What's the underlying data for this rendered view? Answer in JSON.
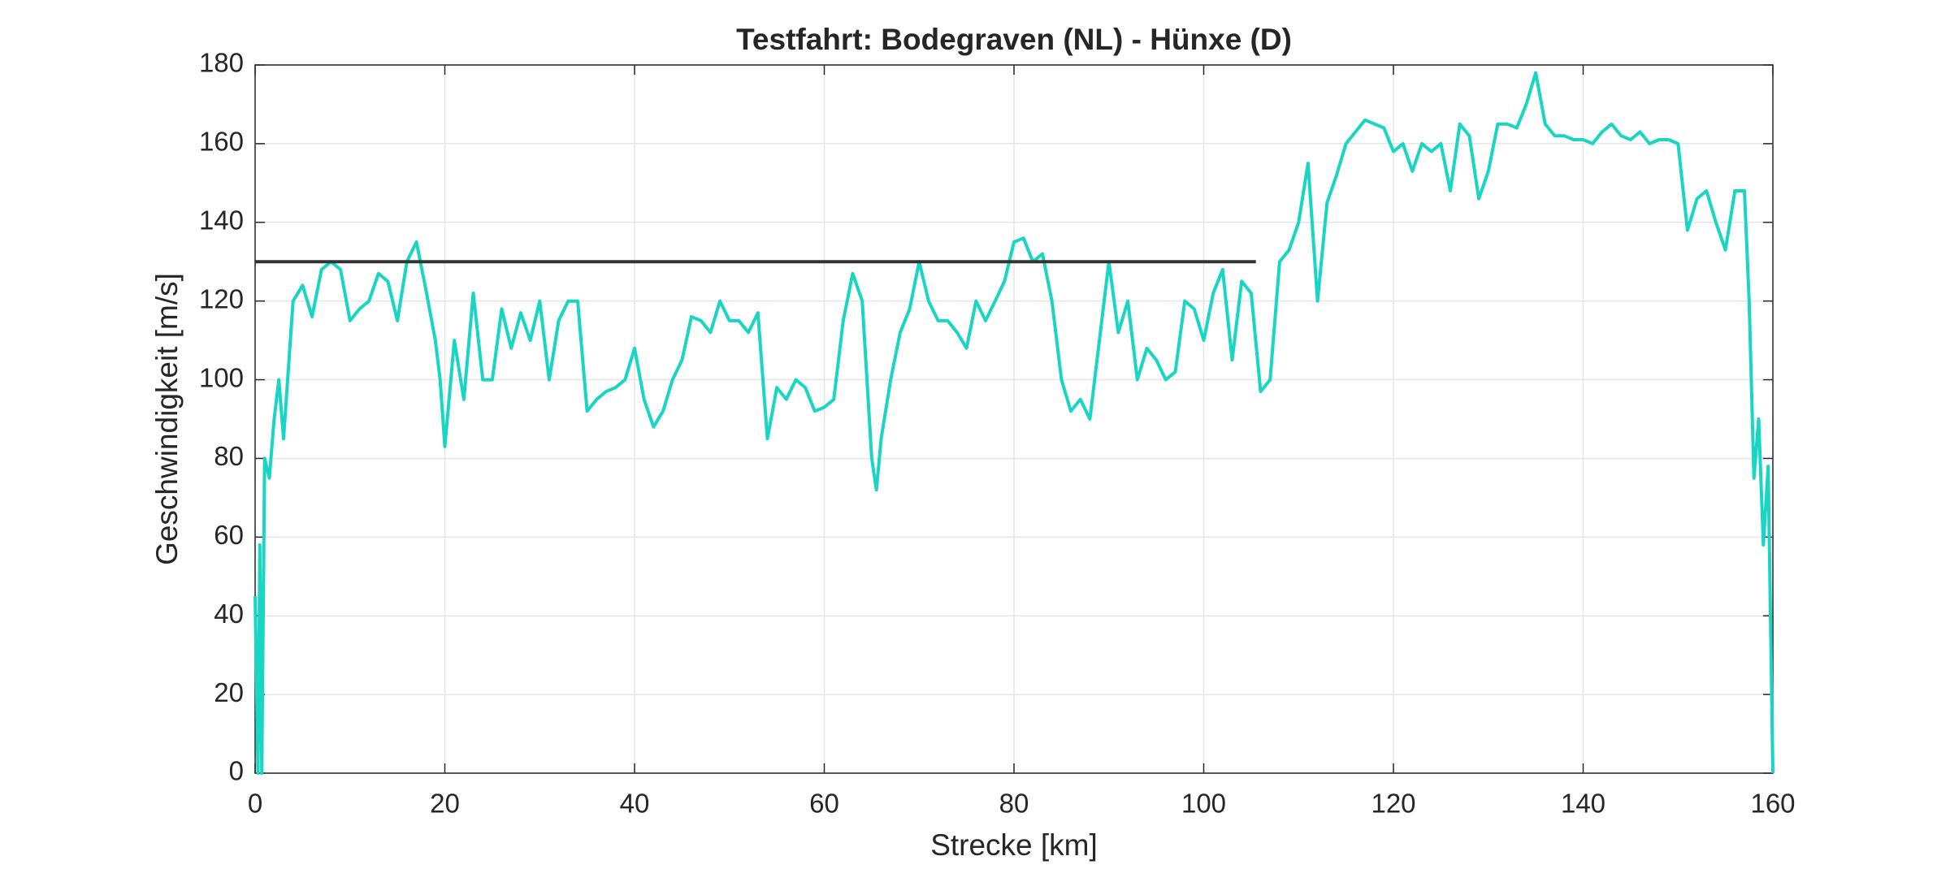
{
  "chart_data": {
    "type": "line",
    "title": "Testfahrt: Bodegraven (NL) - Hünxe (D)",
    "x_label": "Strecke [km]",
    "y_label": "Geschwindigkeit [m/s]",
    "xlim": [
      0,
      160
    ],
    "xticks": [
      0,
      20,
      40,
      60,
      80,
      100,
      120,
      140,
      160
    ],
    "ylim": [
      0,
      180
    ],
    "yticks": [
      0,
      20,
      40,
      60,
      80,
      100,
      120,
      140,
      160,
      180
    ],
    "grid": true,
    "series": [
      {
        "color": "#19d6c4",
        "x": [
          0,
          0.3,
          0.5,
          0.7,
          1,
          1.5,
          2,
          2.5,
          3,
          4,
          5,
          6,
          7,
          8,
          9,
          10,
          11,
          12,
          13,
          14,
          15,
          16,
          17,
          18,
          19,
          19.5,
          20,
          21,
          22,
          23,
          24,
          25,
          26,
          27,
          28,
          29,
          30,
          31,
          32,
          33,
          34,
          35,
          36,
          37,
          38,
          39,
          40,
          41,
          42,
          43,
          44,
          45,
          46,
          47,
          48,
          49,
          50,
          51,
          52,
          53,
          54,
          55,
          56,
          57,
          58,
          59,
          60,
          61,
          62,
          63,
          64,
          65,
          65.5,
          66,
          67,
          68,
          69,
          70,
          71,
          72,
          73,
          74,
          75,
          76,
          77,
          78,
          79,
          80,
          81,
          82,
          83,
          84,
          85,
          86,
          87,
          88,
          89,
          90,
          91,
          92,
          93,
          94,
          95,
          96,
          97,
          98,
          99,
          100,
          101,
          102,
          103,
          104,
          105,
          106,
          107,
          108,
          109,
          110,
          111,
          112,
          113,
          114,
          115,
          116,
          117,
          118,
          119,
          120,
          121,
          122,
          123,
          124,
          125,
          126,
          127,
          128,
          129,
          130,
          131,
          132,
          133,
          134,
          135,
          136,
          137,
          138,
          139,
          140,
          141,
          142,
          143,
          144,
          145,
          146,
          147,
          148,
          149,
          150,
          151,
          152,
          153,
          154,
          155,
          156,
          157,
          157.5,
          158,
          158.5,
          159,
          159.5,
          160
        ],
        "values": [
          45,
          0,
          58,
          0,
          80,
          75,
          90,
          100,
          85,
          120,
          124,
          116,
          128,
          130,
          128,
          115,
          118,
          120,
          127,
          125,
          115,
          130,
          135,
          123,
          110,
          100,
          83,
          110,
          95,
          122,
          100,
          100,
          118,
          108,
          117,
          110,
          120,
          100,
          115,
          120,
          120,
          92,
          95,
          97,
          98,
          100,
          108,
          95,
          88,
          92,
          100,
          105,
          116,
          115,
          112,
          120,
          115,
          115,
          112,
          117,
          85,
          98,
          95,
          100,
          98,
          92,
          93,
          95,
          115,
          127,
          120,
          80,
          72,
          85,
          100,
          112,
          118,
          130,
          120,
          115,
          115,
          112,
          108,
          120,
          115,
          120,
          125,
          135,
          136,
          130,
          132,
          120,
          100,
          92,
          95,
          90,
          110,
          130,
          112,
          120,
          100,
          108,
          105,
          100,
          102,
          120,
          118,
          110,
          122,
          128,
          105,
          125,
          122,
          97,
          100,
          130,
          133,
          140,
          155,
          120,
          145,
          152,
          160,
          163,
          166,
          165,
          164,
          158,
          160,
          153,
          160,
          158,
          160,
          148,
          165,
          162,
          146,
          153,
          165,
          165,
          164,
          170,
          178,
          165,
          162,
          162,
          161,
          161,
          160,
          163,
          165,
          162,
          161,
          163,
          160,
          161,
          161,
          160,
          138,
          146,
          148,
          140,
          133,
          148,
          148,
          120,
          75,
          90,
          58,
          78,
          0
        ]
      },
      {
        "color": "#333333",
        "x": [
          0,
          105.5
        ],
        "values": [
          130,
          130
        ]
      }
    ]
  }
}
